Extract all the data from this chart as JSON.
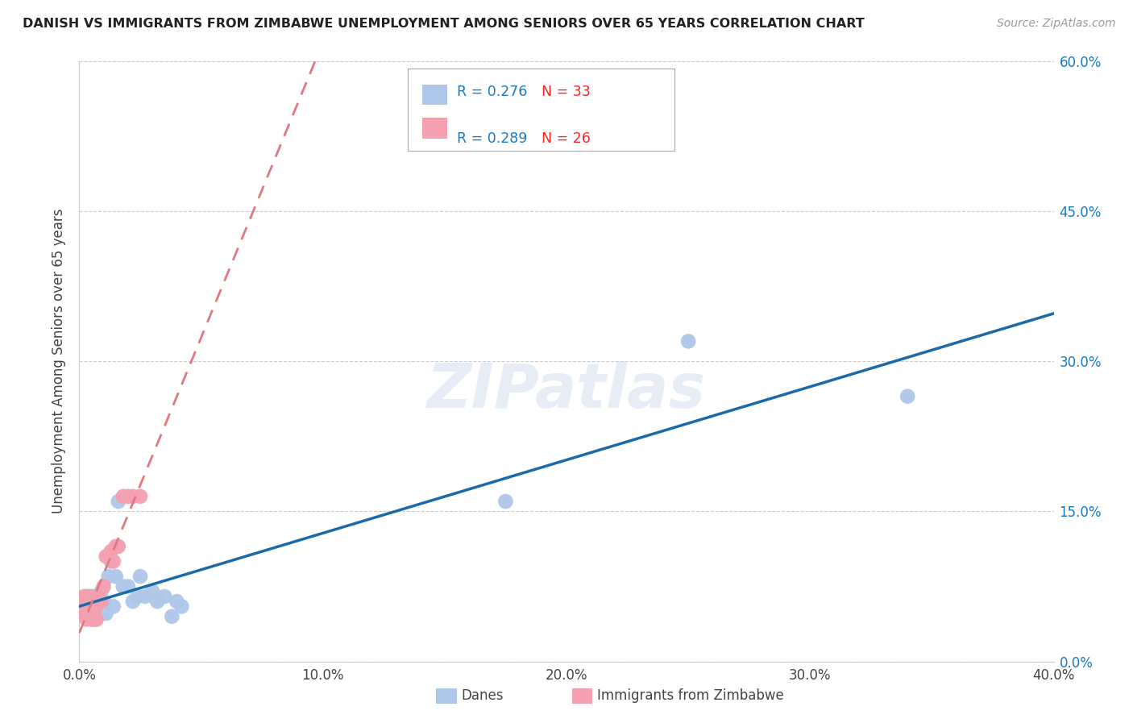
{
  "title": "DANISH VS IMMIGRANTS FROM ZIMBABWE UNEMPLOYMENT AMONG SENIORS OVER 65 YEARS CORRELATION CHART",
  "source": "Source: ZipAtlas.com",
  "ylabel": "Unemployment Among Seniors over 65 years",
  "xlim": [
    0.0,
    0.4
  ],
  "ylim": [
    0.0,
    0.6
  ],
  "xtick_vals": [
    0.0,
    0.1,
    0.2,
    0.3,
    0.4
  ],
  "ytick_vals": [
    0.0,
    0.15,
    0.3,
    0.45,
    0.6
  ],
  "danes_R": 0.276,
  "danes_N": 33,
  "zimbabwe_R": 0.289,
  "zimbabwe_N": 26,
  "danes_color": "#aec6e8",
  "danes_line_color": "#1a6aaa",
  "zimbabwe_color": "#f4a0b0",
  "zimbabwe_line_color": "#e07880",
  "legend_R_color": "#1a7abf",
  "legend_N_color": "#ff2222",
  "watermark": "ZIPatlas",
  "background_color": "#ffffff",
  "grid_color": "#cccccc",
  "danes_x": [
    0.001,
    0.002,
    0.003,
    0.004,
    0.004,
    0.005,
    0.005,
    0.006,
    0.007,
    0.008,
    0.009,
    0.01,
    0.011,
    0.012,
    0.013,
    0.014,
    0.015,
    0.016,
    0.018,
    0.02,
    0.022,
    0.024,
    0.025,
    0.027,
    0.03,
    0.032,
    0.035,
    0.038,
    0.04,
    0.042,
    0.175,
    0.25,
    0.34
  ],
  "danes_y": [
    0.055,
    0.06,
    0.065,
    0.048,
    0.06,
    0.045,
    0.065,
    0.042,
    0.055,
    0.06,
    0.07,
    0.06,
    0.048,
    0.085,
    0.1,
    0.055,
    0.085,
    0.16,
    0.075,
    0.075,
    0.06,
    0.065,
    0.085,
    0.065,
    0.07,
    0.06,
    0.065,
    0.045,
    0.06,
    0.055,
    0.16,
    0.32,
    0.265
  ],
  "zimbabwe_x": [
    0.001,
    0.002,
    0.002,
    0.003,
    0.003,
    0.004,
    0.004,
    0.005,
    0.005,
    0.006,
    0.006,
    0.007,
    0.007,
    0.008,
    0.009,
    0.01,
    0.011,
    0.012,
    0.013,
    0.014,
    0.015,
    0.016,
    0.018,
    0.02,
    0.022,
    0.025
  ],
  "zimbabwe_y": [
    0.055,
    0.048,
    0.065,
    0.042,
    0.06,
    0.05,
    0.065,
    0.042,
    0.06,
    0.048,
    0.065,
    0.055,
    0.042,
    0.065,
    0.06,
    0.075,
    0.105,
    0.105,
    0.11,
    0.1,
    0.115,
    0.115,
    0.165,
    0.165,
    0.165,
    0.165
  ]
}
